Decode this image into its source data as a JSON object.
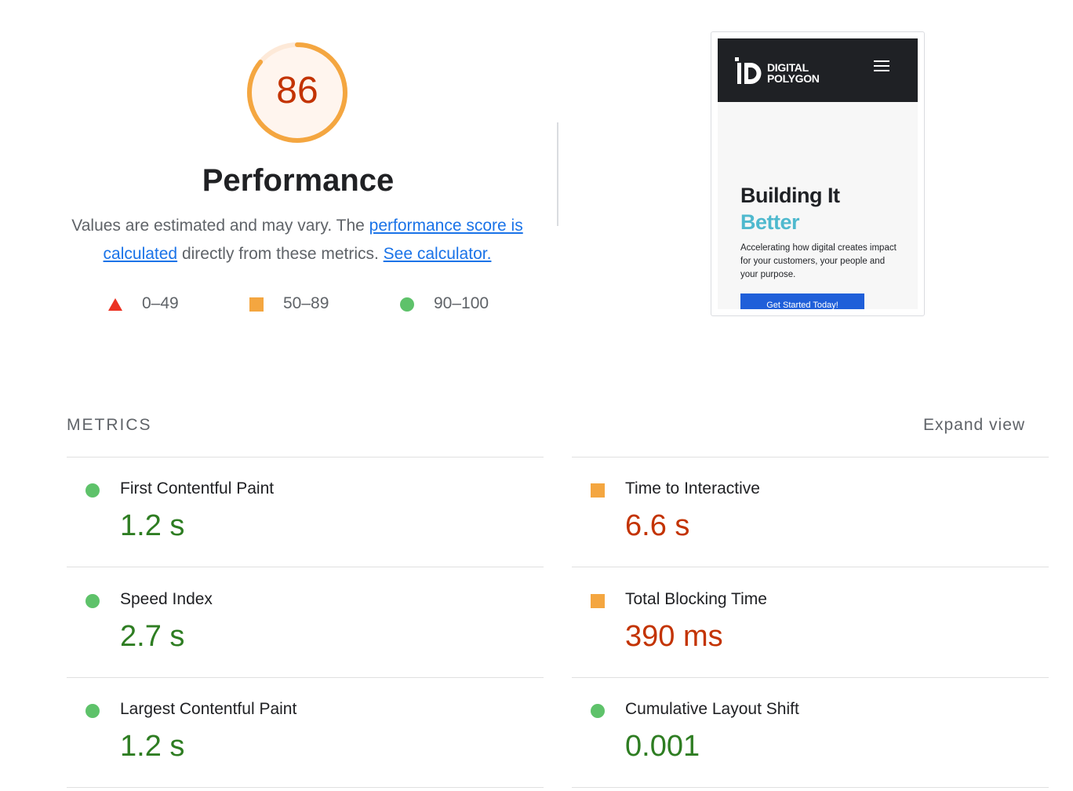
{
  "score": {
    "value": "86",
    "fraction": 0.86,
    "color": "#f4a640"
  },
  "category": {
    "title": "Performance"
  },
  "description": {
    "text1": "Values are estimated and may vary. The ",
    "link1": "performance score is calculated",
    "text2": " directly from these metrics. ",
    "link2": "See calculator."
  },
  "legend": [
    {
      "shape": "triangle",
      "range": "0–49",
      "color": "#eb3223"
    },
    {
      "shape": "square",
      "range": "50–89",
      "color": "#f4a640"
    },
    {
      "shape": "circle",
      "range": "90–100",
      "color": "#5ec26a"
    }
  ],
  "screenshot": {
    "logo_line1": "DIGITAL",
    "logo_line2": "POLYGON",
    "hero_line1": "Building It",
    "hero_line2": "Better",
    "hero_sub": "Accelerating how digital creates impact for your customers, your people and your purpose.",
    "button": "Get Started Today!"
  },
  "metrics": {
    "title": "METRICS",
    "expand": "Expand view",
    "items": [
      {
        "name": "First Contentful Paint",
        "value": "1.2 s",
        "rating": "pass"
      },
      {
        "name": "Time to Interactive",
        "value": "6.6 s",
        "rating": "average"
      },
      {
        "name": "Speed Index",
        "value": "2.7 s",
        "rating": "pass"
      },
      {
        "name": "Total Blocking Time",
        "value": "390 ms",
        "rating": "average"
      },
      {
        "name": "Largest Contentful Paint",
        "value": "1.2 s",
        "rating": "pass"
      },
      {
        "name": "Cumulative Layout Shift",
        "value": "0.001",
        "rating": "pass"
      }
    ]
  }
}
